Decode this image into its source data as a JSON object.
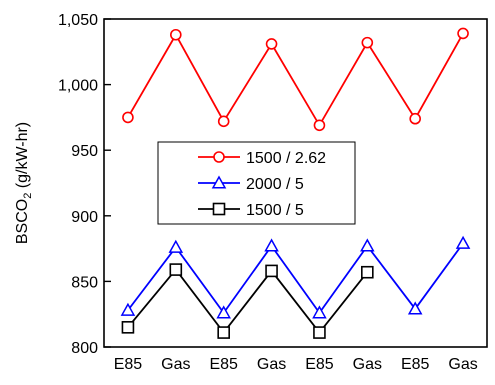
{
  "chart_data": {
    "type": "line",
    "title": "",
    "xlabel": "",
    "ylabel": "BSCO",
    "ylabel_subscript": "2",
    "ylabel_suffix": " (g/kW-hr)",
    "categories": [
      "E85",
      "Gas",
      "E85",
      "Gas",
      "E85",
      "Gas",
      "E85",
      "Gas"
    ],
    "ylim": [
      800,
      1050
    ],
    "yticks": [
      800,
      850,
      900,
      950,
      1000,
      1050
    ],
    "ytick_labels": [
      "800",
      "850",
      "900",
      "950",
      "1,000",
      "1,050"
    ],
    "grid": false,
    "legend_position": "center-left",
    "series": [
      {
        "name": "1500 / 2.62",
        "marker": "circle",
        "color": "#ff0000",
        "values": [
          975,
          1038,
          972,
          1031,
          969,
          1032,
          974,
          1039
        ]
      },
      {
        "name": "2000 / 5",
        "marker": "triangle",
        "color": "#0000ff",
        "values": [
          828,
          876,
          826,
          877,
          826,
          877,
          829,
          879
        ]
      },
      {
        "name": "1500 / 5",
        "marker": "square",
        "color": "#000000",
        "values": [
          815,
          859,
          811,
          858,
          811,
          857,
          null,
          null
        ]
      }
    ]
  }
}
